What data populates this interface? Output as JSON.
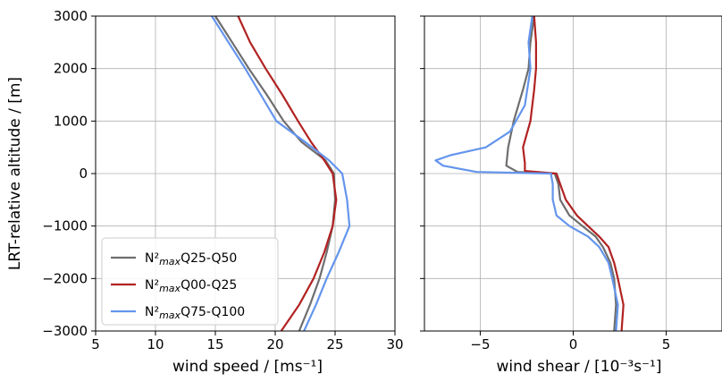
{
  "chart_data": [
    {
      "type": "line",
      "xlabel": "wind speed / [ms⁻¹]",
      "ylabel": "LRT-relative altitude / [m]",
      "xlim": [
        5,
        30
      ],
      "ylim": [
        -3000,
        3000
      ],
      "xticks": [
        "5",
        "10",
        "15",
        "20",
        "25",
        "30"
      ],
      "yticks": [
        "−3000",
        "−2000",
        "−1000",
        "0",
        "1000",
        "2000",
        "3000"
      ],
      "grid": true,
      "legend_position": "lower-left",
      "series": [
        {
          "name": "N²maxQ25-Q50",
          "color": "#6e6e6e",
          "x": [
            22.0,
            22.9,
            23.7,
            24.3,
            24.8,
            25.0,
            24.9,
            24.2,
            22.2,
            20.7,
            19.3,
            17.8,
            16.4,
            15.0
          ],
          "y": [
            -3000,
            -2500,
            -2000,
            -1500,
            -1000,
            -500,
            0,
            250,
            600,
            1000,
            1500,
            2000,
            2500,
            3000
          ]
        },
        {
          "name": "N²maxQ00-Q25",
          "color": "#b22222",
          "x": [
            20.5,
            22.0,
            23.2,
            24.1,
            24.8,
            25.1,
            24.8,
            24.1,
            23.0,
            21.9,
            20.6,
            19.2,
            17.9,
            16.9
          ],
          "y": [
            -3000,
            -2500,
            -2000,
            -1500,
            -1000,
            -500,
            0,
            250,
            600,
            1000,
            1500,
            2000,
            2500,
            3000
          ]
        },
        {
          "name": "N²maxQ75-Q100",
          "color": "#6495ed",
          "x": [
            22.4,
            23.4,
            24.3,
            25.3,
            26.2,
            26.0,
            25.6,
            24.5,
            22.5,
            20.1,
            18.8,
            17.5,
            16.1,
            14.7
          ],
          "y": [
            -3000,
            -2500,
            -2000,
            -1500,
            -1000,
            -500,
            0,
            250,
            600,
            1000,
            1500,
            2000,
            2500,
            3000
          ]
        }
      ]
    },
    {
      "type": "line",
      "xlabel": "wind shear / [10⁻³s⁻¹]",
      "ylabel": "",
      "xlim": [
        -8,
        8
      ],
      "ylim": [
        -3000,
        3000
      ],
      "xticks": [
        "−5",
        "0",
        "5"
      ],
      "grid": true,
      "series": [
        {
          "name": "N²maxQ25-Q50",
          "color": "#6e6e6e",
          "x": [
            2.2,
            2.3,
            2.2,
            2.0,
            1.6,
            1.2,
            0.5,
            -0.2,
            -0.7,
            -0.8,
            -1.0,
            -3.0,
            -3.6,
            -3.5,
            -3.2,
            -2.7,
            -2.4,
            -2.3,
            -2.1
          ],
          "y": [
            -3000,
            -2500,
            -2000,
            -1700,
            -1400,
            -1200,
            -1000,
            -800,
            -500,
            -200,
            0,
            30,
            150,
            500,
            1000,
            1600,
            2000,
            2500,
            3000
          ]
        },
        {
          "name": "N²maxQ00-Q25",
          "color": "#b22222",
          "x": [
            2.6,
            2.7,
            2.4,
            2.2,
            1.9,
            1.4,
            0.8,
            0.2,
            -0.4,
            -0.7,
            -0.9,
            -2.6,
            -2.6,
            -2.7,
            -2.3,
            -2.1,
            -2.0,
            -2.0,
            -2.1
          ],
          "y": [
            -3000,
            -2500,
            -2000,
            -1700,
            -1400,
            -1200,
            -1000,
            -800,
            -500,
            -200,
            0,
            50,
            200,
            500,
            1000,
            1600,
            2000,
            2500,
            3000
          ]
        },
        {
          "name": "N²maxQ75-Q100",
          "color": "#6495ed",
          "x": [
            2.3,
            2.4,
            2.1,
            1.9,
            1.4,
            0.8,
            -0.2,
            -0.9,
            -1.1,
            -1.1,
            -1.2,
            -5.2,
            -7.0,
            -7.4,
            -6.6,
            -4.7,
            -3.4,
            -2.6,
            -2.3,
            -2.4,
            -2.2
          ],
          "y": [
            -3000,
            -2500,
            -2000,
            -1700,
            -1400,
            -1200,
            -1000,
            -800,
            -500,
            -200,
            0,
            30,
            150,
            250,
            350,
            500,
            800,
            1300,
            2000,
            2500,
            3000
          ]
        }
      ]
    }
  ]
}
